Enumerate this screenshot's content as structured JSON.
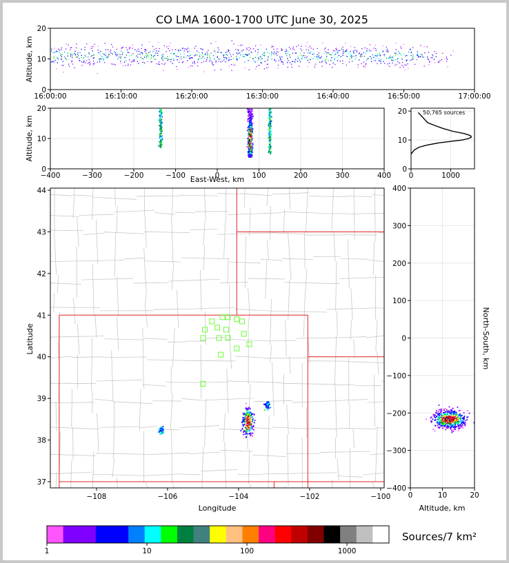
{
  "title": "CO LMA 1600-1700 UTC June 30, 2025",
  "colorbar": {
    "label": "Sources/7 km²",
    "tick_labels": [
      "1",
      "10",
      "100",
      "1000"
    ],
    "colors": [
      "#ff55ff",
      "#8000ff",
      "#8000ff",
      "#0000ff",
      "#0000ff",
      "#0080ff",
      "#00ffff",
      "#00ff00",
      "#008040",
      "#408080",
      "#ffff00",
      "#ffc080",
      "#ff8000",
      "#ff0080",
      "#ff0000",
      "#c00000",
      "#800000",
      "#000000",
      "#808080",
      "#c0c0c0",
      "#ffffff"
    ]
  },
  "chart_data": [
    {
      "type": "heatmap",
      "panel": "altitude-time",
      "ylabel": "Altitude, km",
      "xlabel": "",
      "xlim": [
        "16:00:00",
        "17:00:00"
      ],
      "ylim": [
        0,
        20
      ],
      "x_tick_labels": [
        "16:00:00",
        "16:10:00",
        "16:20:00",
        "16:30:00",
        "16:40:00",
        "16:50:00",
        "17:00:00"
      ],
      "y_tick_labels": [
        "0",
        "10",
        "20"
      ],
      "activity_span": [
        "16:00",
        "16:57"
      ],
      "altitude_band_km": [
        5,
        20
      ],
      "core_altitude_km": 11
    },
    {
      "type": "heatmap",
      "panel": "altitude-eastwest",
      "ylabel": "Altitude, km",
      "xlabel": "East-West, km",
      "xlim": [
        -400,
        400
      ],
      "ylim": [
        0,
        20
      ],
      "x_tick_labels": [
        "−400",
        "−300",
        "−200",
        "−100",
        "0",
        "100",
        "200",
        "300",
        "400"
      ],
      "y_tick_labels": [
        "0",
        "10",
        "20"
      ],
      "clusters": [
        {
          "x_km": -137,
          "alt_km": [
            7,
            20
          ]
        },
        {
          "x_km": 78,
          "alt_km": [
            4,
            20
          ]
        },
        {
          "x_km": 125,
          "alt_km": [
            5,
            20
          ]
        }
      ]
    },
    {
      "type": "line",
      "panel": "altitude-histogram",
      "annotation": "50,765 sources",
      "xlim": [
        0,
        1600
      ],
      "ylim": [
        0,
        21
      ],
      "x_tick_labels": [
        "0",
        "1000"
      ],
      "y_tick_labels": [
        "0",
        "10",
        "20"
      ],
      "x": [
        0,
        20,
        80,
        200,
        400,
        700,
        1000,
        1300,
        1450,
        1520,
        1500,
        1350,
        1050,
        800,
        600,
        420,
        350,
        250,
        180
      ],
      "y": [
        5,
        5.5,
        6.5,
        7.5,
        8.2,
        9,
        9.5,
        10,
        10.5,
        11,
        11.5,
        12.2,
        13,
        14,
        15,
        16,
        17,
        18.5,
        19.5
      ]
    },
    {
      "type": "heatmap",
      "panel": "plan-view",
      "xlabel": "Longitude",
      "ylabel": "Latitude",
      "xlim": [
        -109.3,
        -99.9
      ],
      "ylim": [
        36.85,
        44.05
      ],
      "x_tick_labels": [
        "−108",
        "−106",
        "−104",
        "−102",
        "−100"
      ],
      "y_tick_labels": [
        "37",
        "38",
        "39",
        "40",
        "41",
        "42",
        "43",
        "44"
      ],
      "stations": [
        [
          -104.75,
          40.85
        ],
        [
          -104.45,
          40.95
        ],
        [
          -104.3,
          40.95
        ],
        [
          -104.05,
          40.9
        ],
        [
          -103.9,
          40.85
        ],
        [
          -104.95,
          40.65
        ],
        [
          -104.6,
          40.7
        ],
        [
          -104.35,
          40.65
        ],
        [
          -103.85,
          40.55
        ],
        [
          -105.0,
          40.45
        ],
        [
          -104.55,
          40.45
        ],
        [
          -104.3,
          40.45
        ],
        [
          -103.7,
          40.3
        ],
        [
          -104.05,
          40.2
        ],
        [
          -104.5,
          40.05
        ],
        [
          -105.0,
          39.35
        ]
      ],
      "storms": [
        {
          "lon": -103.75,
          "lat": 38.45
        },
        {
          "lon": -103.2,
          "lat": 38.85
        },
        {
          "lon": -106.2,
          "lat": 38.25
        }
      ]
    },
    {
      "type": "heatmap",
      "panel": "northsouth-altitude",
      "xlabel": "Altitude, km",
      "ylabel": "North-South, km",
      "xlim": [
        0,
        20
      ],
      "ylim": [
        -400,
        400
      ],
      "x_tick_labels": [
        "0",
        "10",
        "20"
      ],
      "y_tick_labels": [
        "−400",
        "−300",
        "−200",
        "−100",
        "0",
        "100",
        "200",
        "300",
        "400"
      ],
      "core_ns_km": -215,
      "core_alt_km": 12
    }
  ]
}
